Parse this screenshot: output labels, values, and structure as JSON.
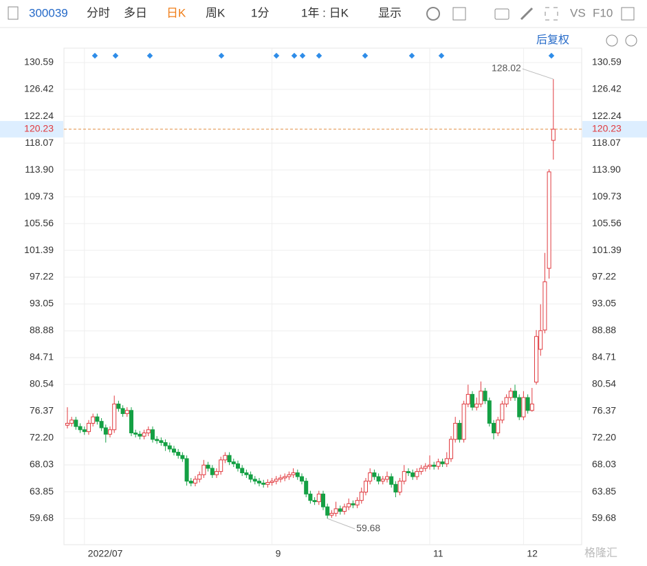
{
  "toolbar": {
    "code": "300039",
    "tabs": [
      "分时",
      "多日",
      "日K",
      "周K",
      "1分",
      "1年 : 日K",
      "显示"
    ],
    "right": [
      "VS",
      "F10"
    ],
    "adjust": "后复权"
  },
  "chart_data": {
    "type": "candlestick",
    "categories": [
      null,
      null,
      null,
      null,
      "2022/07",
      null,
      null,
      null,
      null,
      null,
      null,
      null,
      null,
      null,
      null,
      null,
      null,
      null,
      null,
      null,
      null,
      null,
      null,
      null,
      null,
      null,
      null,
      null,
      null,
      null,
      null,
      null,
      null,
      null,
      null,
      null,
      null,
      null,
      null,
      null,
      null,
      null,
      null,
      null,
      null,
      null,
      null,
      null,
      "9",
      null,
      null,
      null,
      null,
      null,
      null,
      null,
      null,
      null,
      null,
      null,
      null,
      null,
      null,
      null,
      null,
      null,
      null,
      null,
      null,
      null,
      null,
      null,
      null,
      null,
      null,
      null,
      null,
      null,
      null,
      null,
      null,
      null,
      null,
      null,
      null,
      "11",
      null,
      null,
      null,
      null,
      null,
      null,
      null,
      null,
      null,
      null,
      null,
      null,
      null,
      null,
      null,
      null,
      null,
      null,
      null,
      null,
      null,
      "12",
      null,
      null,
      null,
      null,
      null,
      null,
      null
    ],
    "open": [
      74.2,
      74.5,
      75,
      74,
      73.5,
      73.2,
      74.5,
      75.5,
      74.8,
      73.8,
      72.8,
      73.5,
      77.5,
      76.8,
      76,
      76.5,
      73,
      72.8,
      72.5,
      73,
      73.5,
      72,
      71.8,
      71.5,
      71,
      70.5,
      70,
      69.5,
      69,
      65.5,
      65.2,
      65.8,
      66.5,
      68,
      67.5,
      66.5,
      67,
      68.8,
      69.5,
      68.5,
      68.2,
      67.5,
      66.8,
      66.5,
      65.8,
      65.5,
      65.2,
      65,
      65.3,
      65.5,
      65.8,
      66,
      66.2,
      66.5,
      66.8,
      66.2,
      65.5,
      63.5,
      62.5,
      62.3,
      63.5,
      61.5,
      60.2,
      60.5,
      61.2,
      60.8,
      61.5,
      62,
      61.8,
      62.5,
      63.8,
      65.5,
      66.8,
      66.2,
      65.5,
      65.8,
      66.2,
      65,
      63.8,
      65.5,
      67,
      66.8,
      66.2,
      67,
      67.5,
      67.8,
      68,
      67.8,
      68.5,
      68.2,
      69,
      72,
      74.5,
      72,
      77.5,
      79,
      77,
      77.5,
      79.5,
      78,
      74.5,
      73,
      75,
      77.5,
      78.5,
      79.5,
      78.5,
      75.5,
      78.5,
      76.5,
      80.9,
      86,
      89,
      98.6,
      118.5
    ],
    "high": [
      77,
      75.5,
      75.5,
      74.5,
      74,
      75,
      76,
      76,
      75.3,
      74.3,
      74,
      78.8,
      78,
      77.3,
      77,
      77,
      73.5,
      73.3,
      73.5,
      74,
      74,
      72.5,
      72.3,
      72,
      71.5,
      71,
      70.5,
      70,
      69.5,
      66,
      66.3,
      67,
      68.8,
      68.5,
      68,
      67.5,
      69.3,
      70,
      70,
      69,
      68.7,
      68,
      67.3,
      67,
      66.3,
      66,
      65.7,
      65.8,
      66,
      66.3,
      66.5,
      66.7,
      67,
      67.5,
      67.3,
      66.7,
      66,
      64,
      63,
      64,
      64,
      62,
      61,
      62.3,
      61.7,
      62,
      62.8,
      62.5,
      63,
      64.5,
      66,
      67.5,
      67.3,
      66.7,
      66.3,
      67,
      66.7,
      65.5,
      66,
      68,
      67.5,
      67.3,
      67.5,
      68,
      68.3,
      69.5,
      68.5,
      69,
      69,
      70,
      72.5,
      75.5,
      75,
      78,
      80.5,
      79.5,
      78.5,
      81,
      80,
      78.5,
      75,
      75.5,
      78,
      79,
      80,
      80.5,
      79,
      79.5,
      79,
      80,
      89,
      93,
      101,
      114,
      128.02
    ],
    "low": [
      73.7,
      74,
      73.5,
      73,
      72.7,
      72.7,
      74,
      74.3,
      73.3,
      71.5,
      72.3,
      73,
      76.3,
      75.5,
      75.5,
      72.5,
      72.3,
      72,
      72,
      72.5,
      71.5,
      71.3,
      71,
      70.2,
      70,
      69.5,
      69,
      68.5,
      64.8,
      64.7,
      64.7,
      65.3,
      66,
      67,
      66,
      66,
      66.5,
      68.3,
      68,
      67.7,
      67,
      66.3,
      66,
      65.3,
      65,
      64.7,
      64.5,
      64.5,
      64.8,
      65,
      65.3,
      65.5,
      65.7,
      66,
      65.7,
      65,
      63,
      62,
      61.8,
      61.8,
      61,
      59.68,
      59.8,
      60,
      60.3,
      60.3,
      61,
      61.3,
      61.3,
      62,
      63.3,
      65,
      65.7,
      65,
      65,
      65.3,
      64.5,
      63,
      63.3,
      65,
      66.3,
      65.7,
      65.7,
      66.5,
      67,
      67.3,
      67.3,
      67.3,
      67.7,
      67.7,
      68.5,
      71.5,
      71.5,
      71.5,
      77,
      76.5,
      76.5,
      77,
      77.5,
      74,
      72,
      72.5,
      74.5,
      77,
      78,
      78,
      75,
      75,
      76,
      76.3,
      80.5,
      85,
      88.5,
      97,
      115.5
    ],
    "close": [
      74.5,
      75,
      74,
      73.5,
      73.2,
      74.5,
      75.5,
      74.8,
      73.8,
      72.8,
      73.5,
      77.5,
      76.8,
      76,
      76.5,
      73,
      72.8,
      72.5,
      73,
      73.5,
      72,
      71.8,
      71.5,
      71,
      70.5,
      70,
      69.5,
      69,
      65.5,
      65.2,
      65.8,
      66.5,
      68,
      67.5,
      66.5,
      67,
      68.8,
      69.5,
      68.5,
      68.2,
      67.5,
      66.8,
      66.5,
      65.8,
      65.5,
      65.2,
      65,
      65.3,
      65.5,
      65.8,
      66,
      66.2,
      66.5,
      66.8,
      66.2,
      65.5,
      63.5,
      62.5,
      62.3,
      63.5,
      61.5,
      60.2,
      60.5,
      61.2,
      60.8,
      61.5,
      62,
      61.8,
      62.5,
      63.8,
      65.5,
      66.8,
      66.2,
      65.5,
      65.8,
      66.2,
      65,
      63.8,
      65.5,
      67,
      66.8,
      66.2,
      67,
      67.5,
      67.8,
      68,
      67.8,
      68.5,
      68.2,
      69,
      72,
      74.5,
      72,
      77.5,
      79,
      77,
      77.5,
      79.5,
      78,
      74.5,
      73,
      75,
      77.5,
      78.5,
      79.5,
      78.5,
      75.5,
      78.5,
      76.5,
      77.5,
      88,
      88.9,
      96.5,
      113.6,
      120.23
    ],
    "up_color": "#e0393e",
    "down_color": "#14a044",
    "ylim": [
      55.62,
      132.84
    ],
    "yticks": [
      130.59,
      126.42,
      122.24,
      118.07,
      {
        "value": 113.9,
        "label": "113.90"
      },
      109.73,
      105.56,
      101.39,
      97.22,
      93.05,
      88.88,
      84.71,
      80.54,
      76.37,
      {
        "value": 72.2,
        "label": "72.20"
      },
      68.03,
      63.85,
      59.68
    ],
    "grid": true
  }
}
